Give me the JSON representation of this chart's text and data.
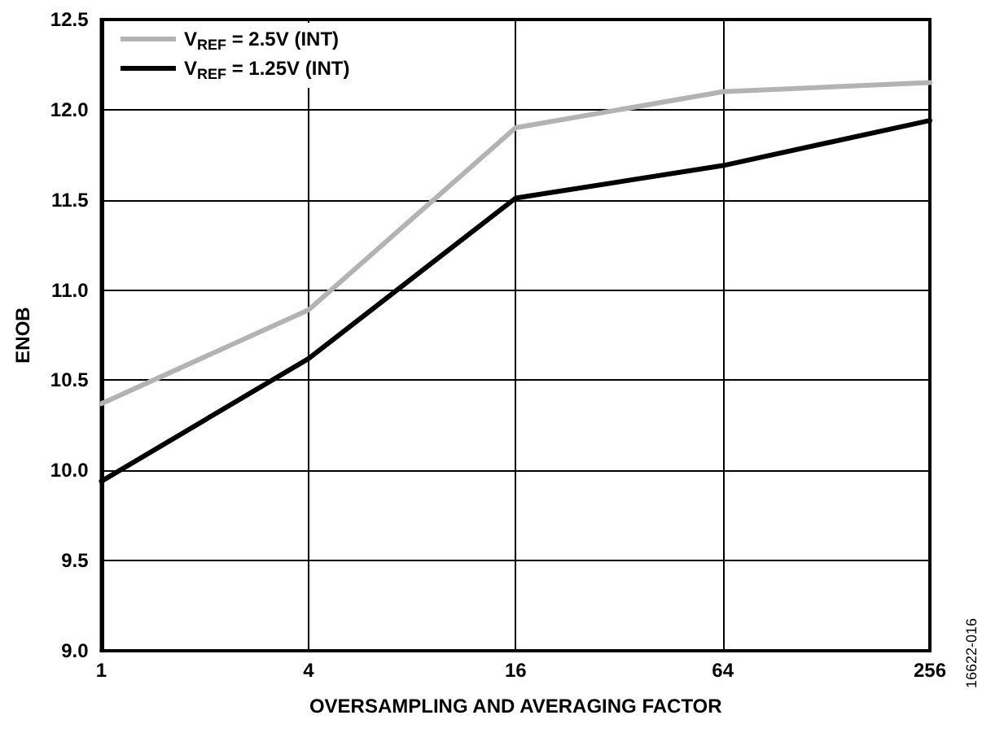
{
  "chart_data": {
    "type": "line",
    "xlabel": "OVERSAMPLING AND AVERAGING FACTOR",
    "ylabel": "ENOB",
    "x": [
      1,
      4,
      16,
      64,
      256
    ],
    "series": [
      {
        "name": "V$_{REF}$ = 2.5V (INT)",
        "color": "#b3b3b3",
        "values": [
          10.37,
          10.89,
          11.9,
          12.1,
          12.15
        ]
      },
      {
        "name": "V$_{REF}$ = 1.25V (INT)",
        "color": "#000000",
        "values": [
          9.94,
          10.62,
          11.51,
          11.69,
          11.94
        ]
      }
    ],
    "log": "x",
    "xlim": [
      1,
      256
    ],
    "xticks": [
      1,
      4,
      16,
      64,
      256
    ],
    "ylim": [
      9,
      12.5
    ],
    "yticks": [
      {
        "value": 9,
        "label": "9.0"
      },
      9.5,
      {
        "value": 10,
        "label": "10.0"
      },
      10.5,
      {
        "value": 11,
        "label": "11.0"
      },
      11.5,
      {
        "value": 12,
        "label": "12.0"
      },
      12.5
    ],
    "grid": true,
    "legend": "top left",
    "marker": "none",
    "line_style": "solid",
    "annotations": [
      "16622-016"
    ]
  }
}
